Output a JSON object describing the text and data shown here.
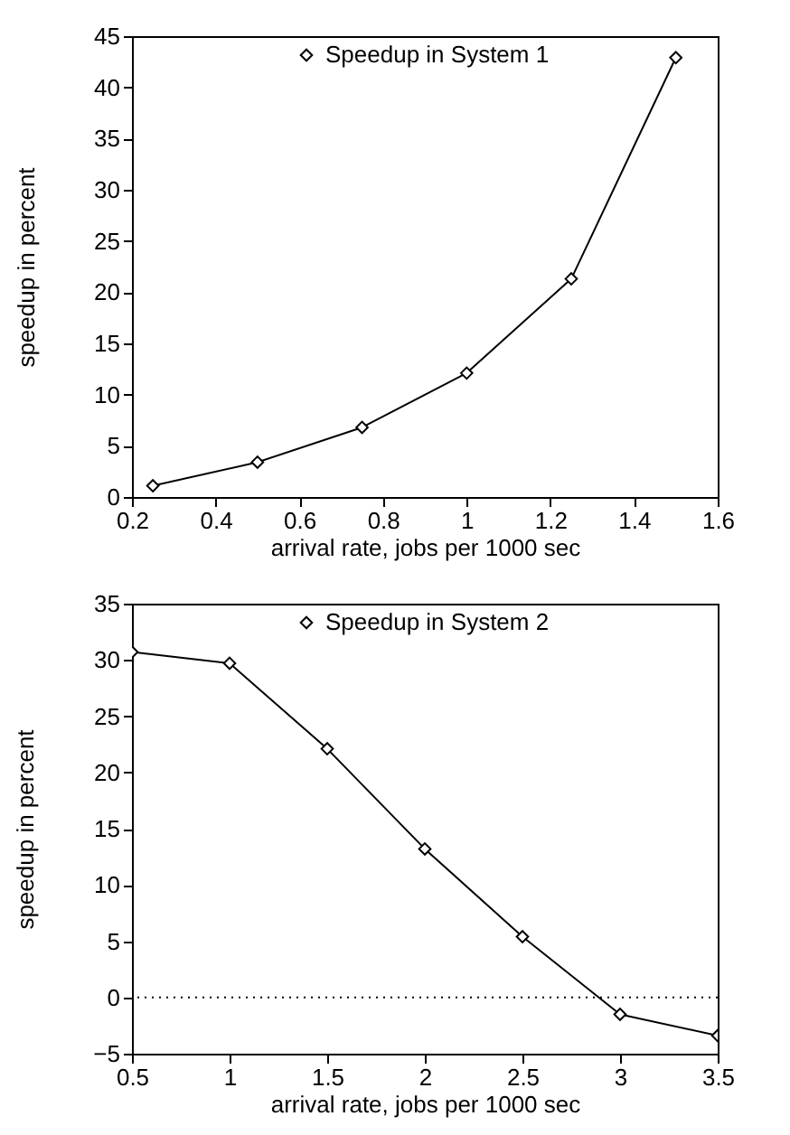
{
  "chart_data": [
    {
      "type": "line",
      "xlabel": "arrival rate, jobs per 1000 sec",
      "ylabel": "speedup in percent",
      "x": [
        0.25,
        0.5,
        0.75,
        1,
        1.25,
        1.5
      ],
      "series": [
        {
          "name": "Speedup in System 1",
          "color": "#000000",
          "values": [
            1.1,
            3.4,
            6.8,
            12.1,
            21.3,
            42.9
          ]
        }
      ],
      "xlim": [
        0.2,
        1.6
      ],
      "xticks": [
        0.2,
        0.4,
        0.6,
        0.8,
        1,
        1.2,
        1.4,
        1.6
      ],
      "ylim": [
        0,
        45
      ],
      "yticks": [
        0,
        5,
        10,
        15,
        20,
        25,
        30,
        35,
        40,
        45
      ],
      "legend": "top right",
      "marker": "diamond",
      "line_style": "solid",
      "grid": false
    },
    {
      "type": "line",
      "xlabel": "arrival rate, jobs per 1000 sec",
      "ylabel": "speedup in percent",
      "x": [
        0.5,
        1,
        1.5,
        2,
        2.5,
        3,
        3.5
      ],
      "series": [
        {
          "name": "Speedup in System 2",
          "color": "#000000",
          "values": [
            30.7,
            29.7,
            22.1,
            13.2,
            5.4,
            -1.5,
            -3.4
          ]
        }
      ],
      "xlim": [
        0.5,
        3.5
      ],
      "xticks": [
        0.5,
        1,
        1.5,
        2,
        2.5,
        3,
        3.5
      ],
      "ylim": [
        -5,
        35
      ],
      "yticks": [
        -5,
        0,
        5,
        10,
        15,
        20,
        25,
        30,
        35
      ],
      "ref_lines": [
        {
          "axis": "y",
          "value": 0,
          "line_style": "dotted",
          "color": "#000000"
        }
      ],
      "legend": "top right",
      "marker": "diamond",
      "line_style": "solid",
      "grid": false
    }
  ]
}
